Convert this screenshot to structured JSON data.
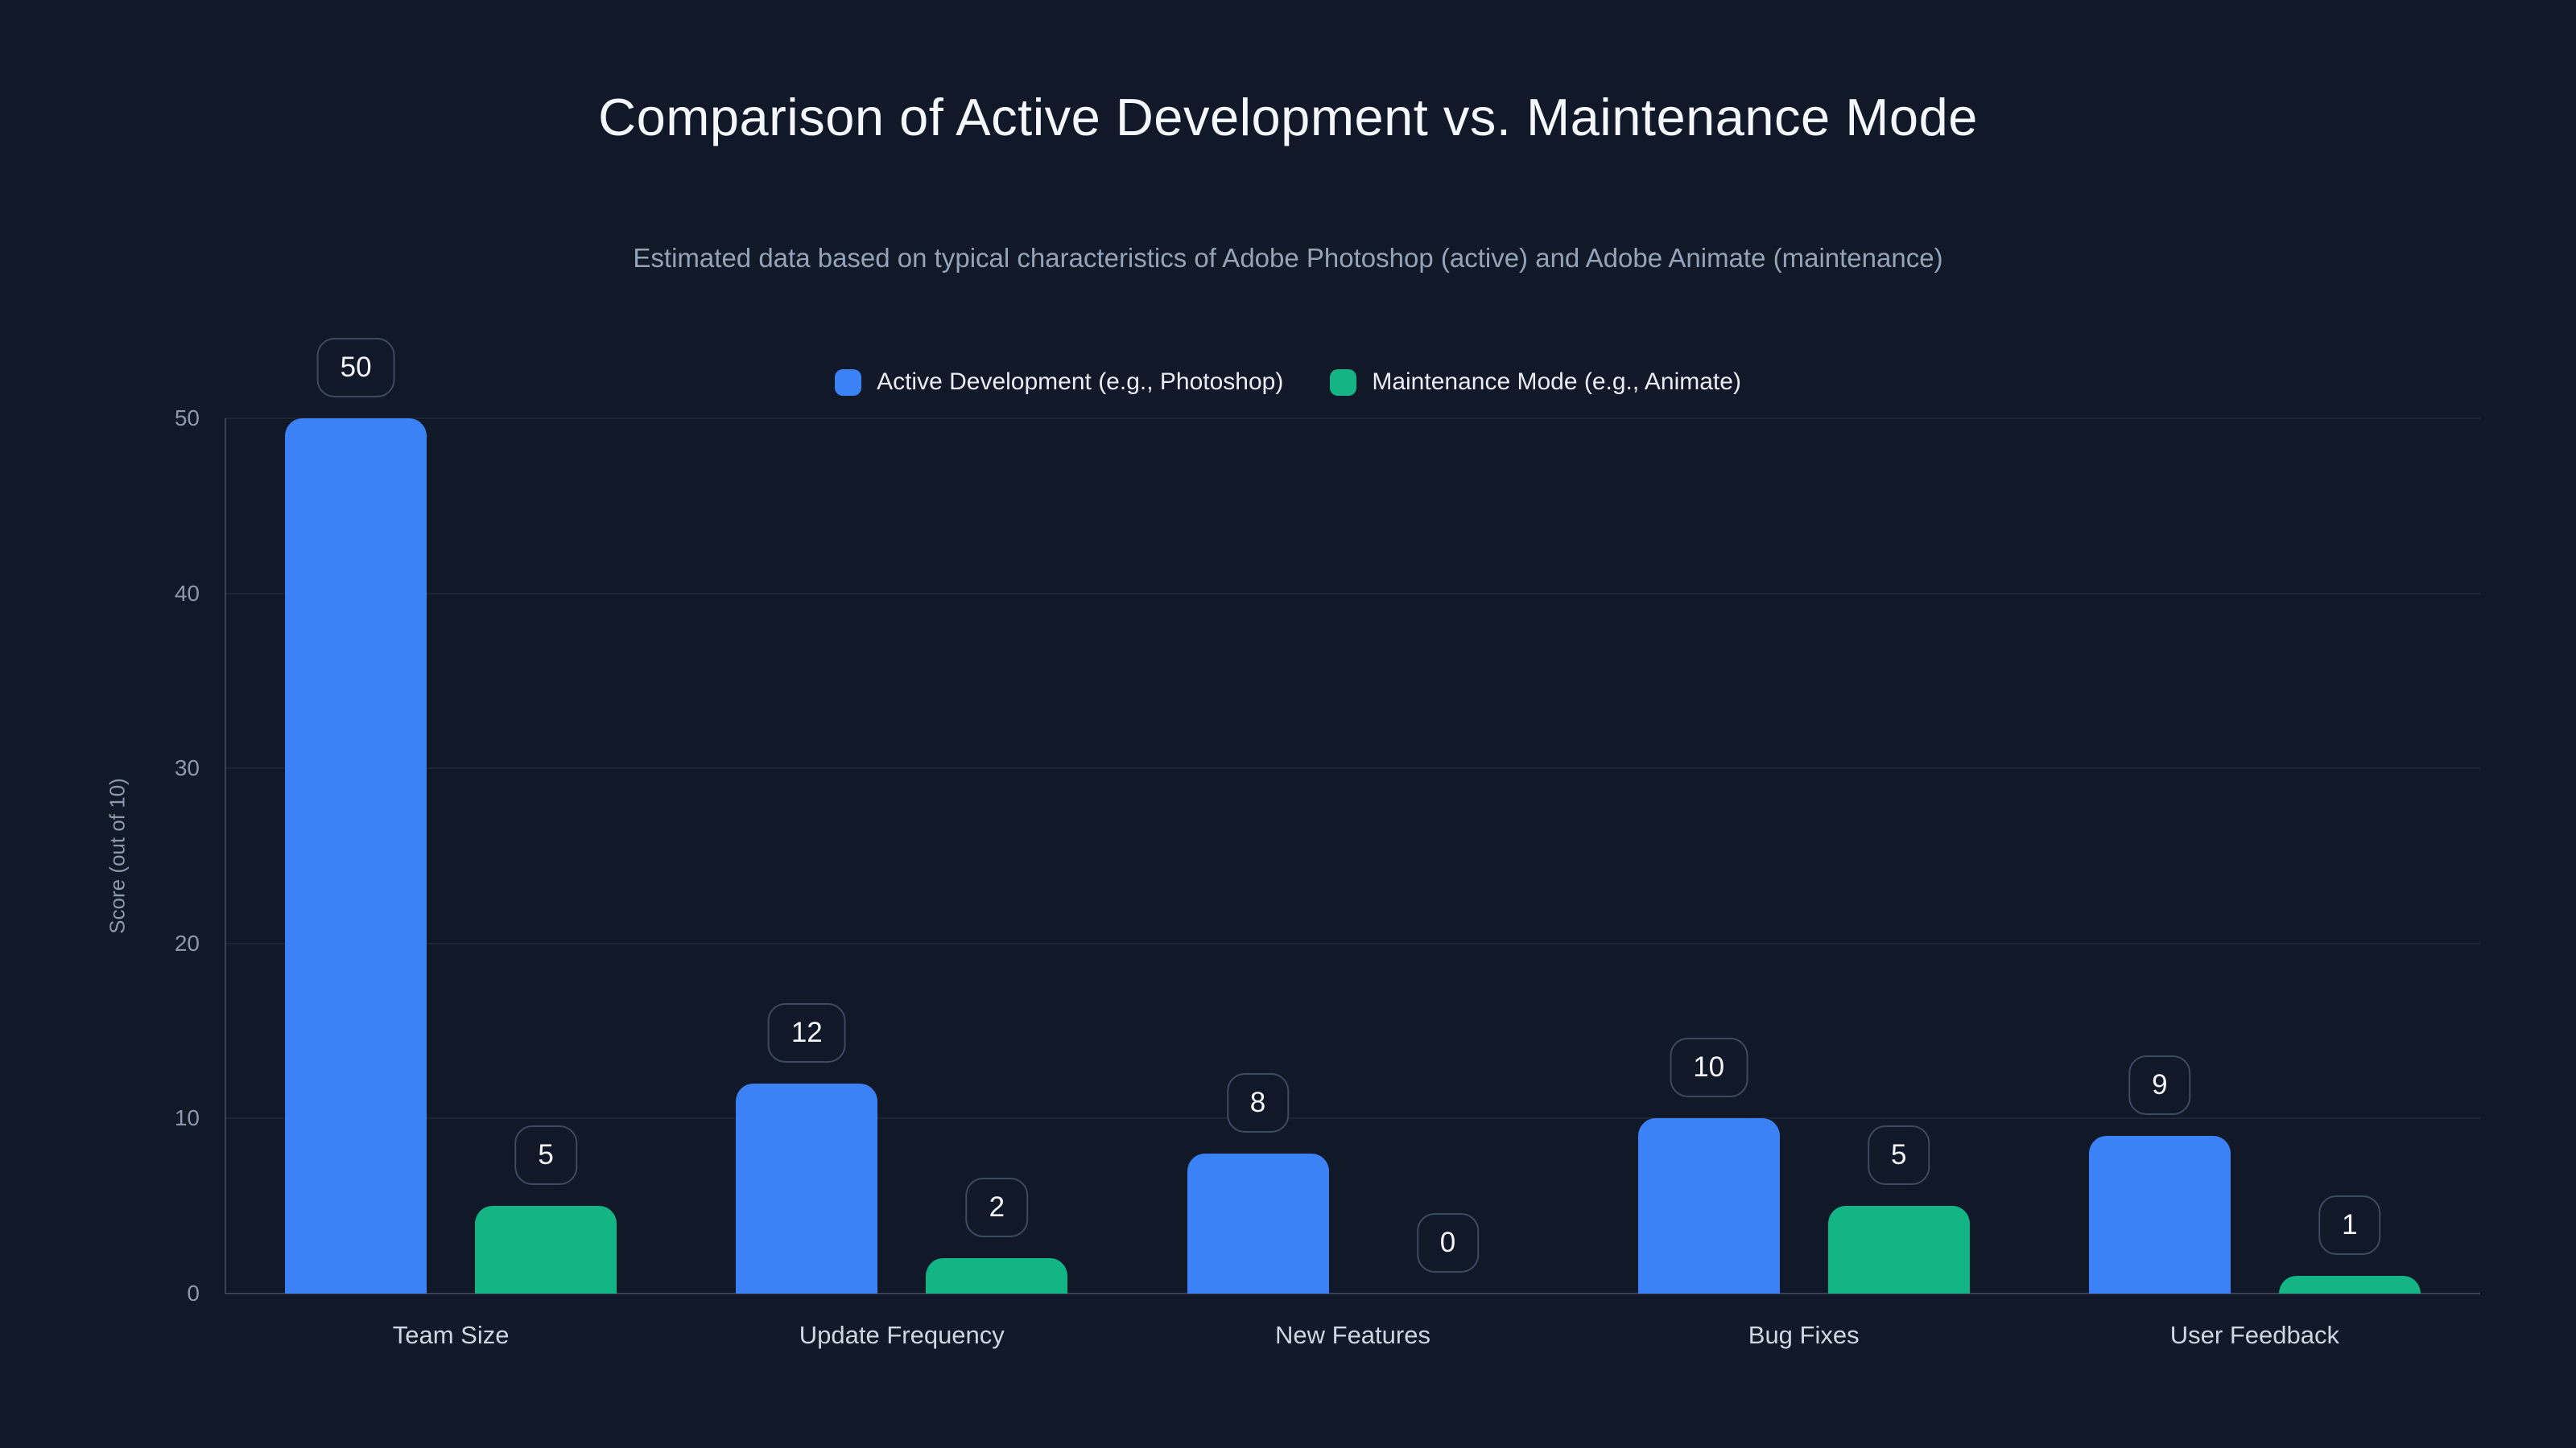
{
  "title": "Comparison of Active Development vs. Maintenance Mode",
  "subtitle": "Estimated data based on typical characteristics of Adobe Photoshop (active) and Adobe Animate (maintenance)",
  "colors": {
    "background": "#111827",
    "active_series": "#3b82f6",
    "maintenance_series": "#12b583",
    "badge_border": "#3d4a5f",
    "grid": "rgba(148,163,184,0.10)",
    "axis": "rgba(148,163,184,0.30)",
    "title_text": "#f4f7fb",
    "subtitle_text": "#94a3b8",
    "tick_text": "#8b99ae"
  },
  "chart_data": {
    "type": "bar",
    "categories": [
      "Team Size",
      "Update Frequency",
      "New Features",
      "Bug Fixes",
      "User Feedback"
    ],
    "series": [
      {
        "name": "Active Development (e.g., Photoshop)",
        "color": "#3b82f6",
        "values": [
          50,
          12,
          8,
          10,
          9
        ]
      },
      {
        "name": "Maintenance Mode (e.g., Animate)",
        "color": "#12b583",
        "values": [
          5,
          2,
          0,
          5,
          1
        ]
      }
    ],
    "title": "Comparison of Active Development vs. Maintenance Mode",
    "subtitle": "Estimated data based on typical characteristics of Adobe Photoshop (active) and Adobe Animate (maintenance)",
    "xlabel": "",
    "ylabel": "Score (out of 10)",
    "yticks": [
      0,
      10,
      20,
      30,
      40,
      50
    ],
    "ylim": [
      0,
      50
    ],
    "grid": true,
    "legend_position": "top",
    "value_labels": "badges above bars"
  }
}
